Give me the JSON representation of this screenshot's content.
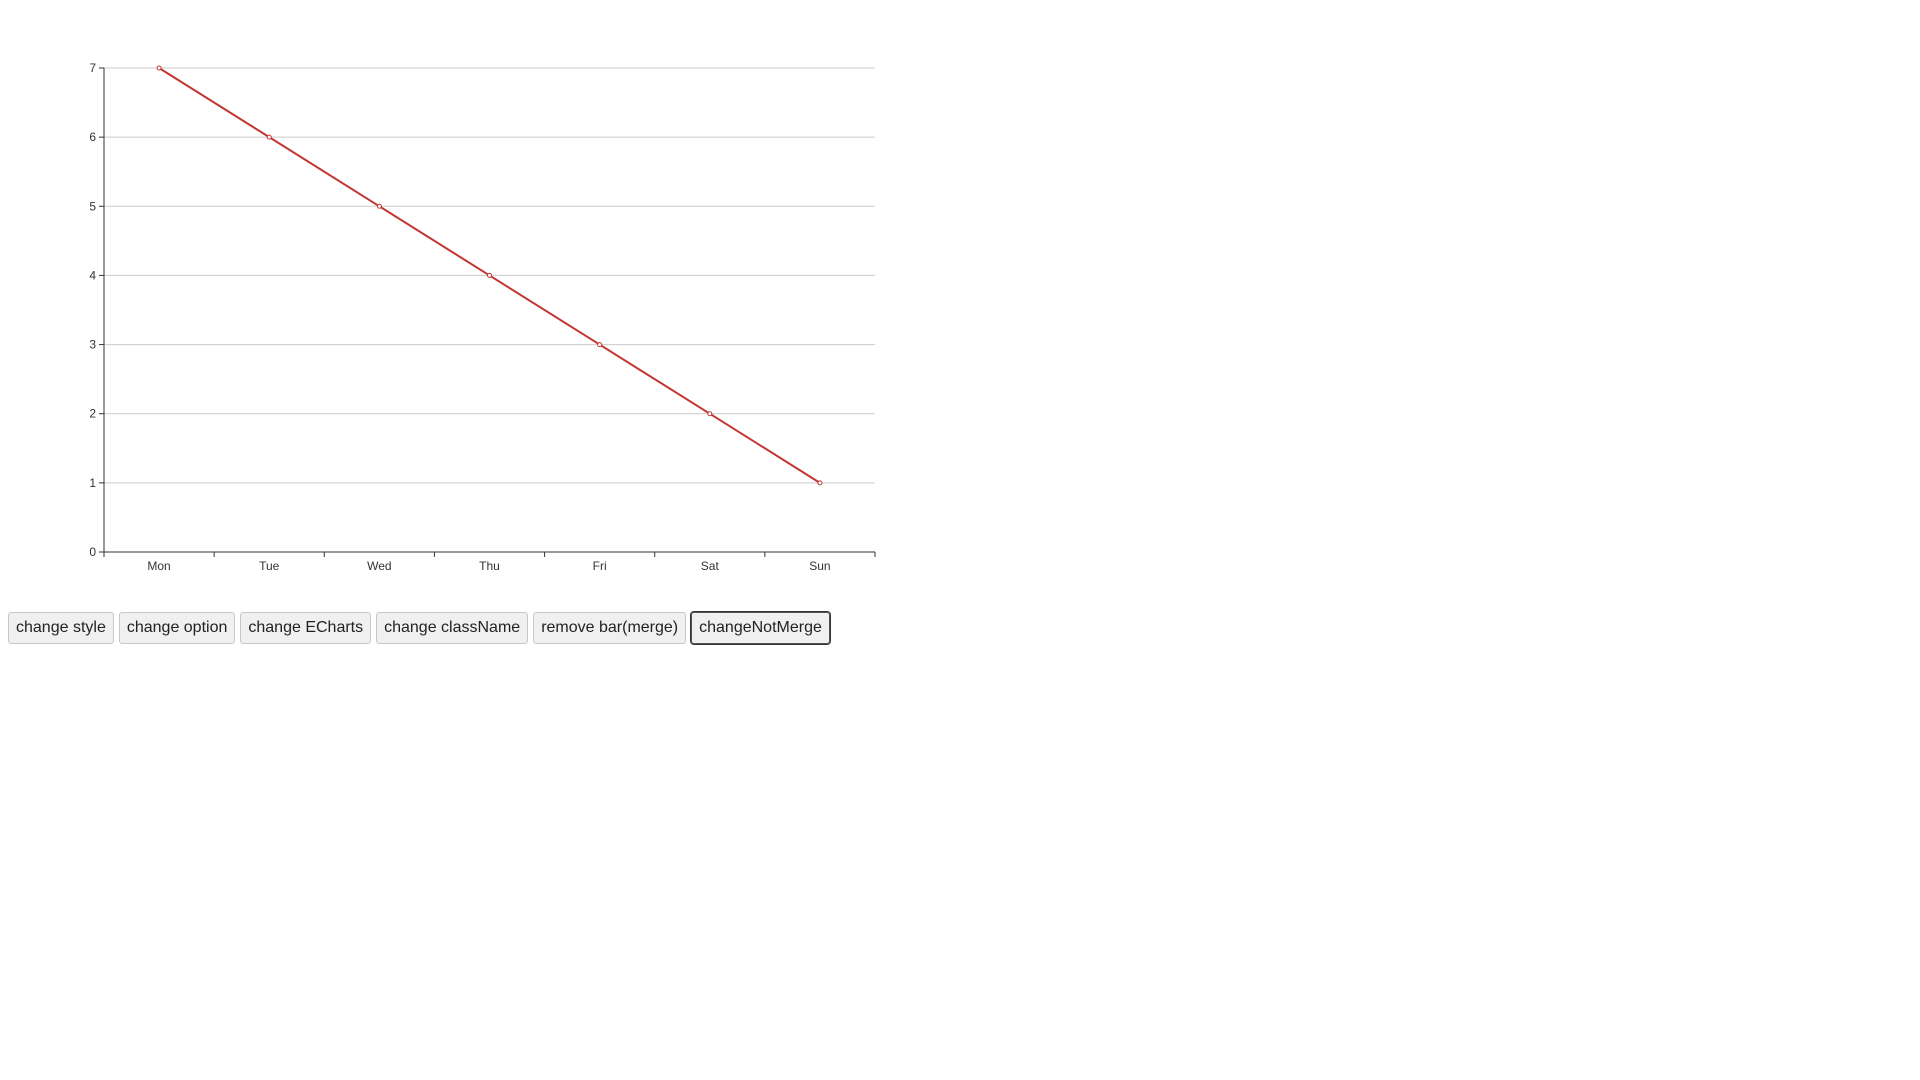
{
  "chart_data": {
    "type": "line",
    "categories": [
      "Mon",
      "Tue",
      "Wed",
      "Thu",
      "Fri",
      "Sat",
      "Sun"
    ],
    "series": [
      {
        "values": [
          7,
          6,
          5,
          4,
          3,
          2,
          1
        ],
        "color": "#c23531"
      }
    ],
    "title": "",
    "xlabel": "",
    "ylabel": "",
    "ylim": [
      0,
      7
    ],
    "yticks": [
      0,
      1,
      2,
      3,
      4,
      5,
      6,
      7
    ],
    "grid": true,
    "colors": {
      "line": "#c23531",
      "axis": "#333333",
      "gridline": "#cccccc"
    }
  },
  "buttons": [
    {
      "label": "change style",
      "name": "change-style-button"
    },
    {
      "label": "change option",
      "name": "change-option-button"
    },
    {
      "label": "change ECharts",
      "name": "change-echarts-button"
    },
    {
      "label": "change className",
      "name": "change-classname-button"
    },
    {
      "label": "remove bar(merge)",
      "name": "remove-bar-merge-button"
    },
    {
      "label": "changeNotMerge",
      "name": "change-not-merge-button",
      "focused": true
    }
  ]
}
